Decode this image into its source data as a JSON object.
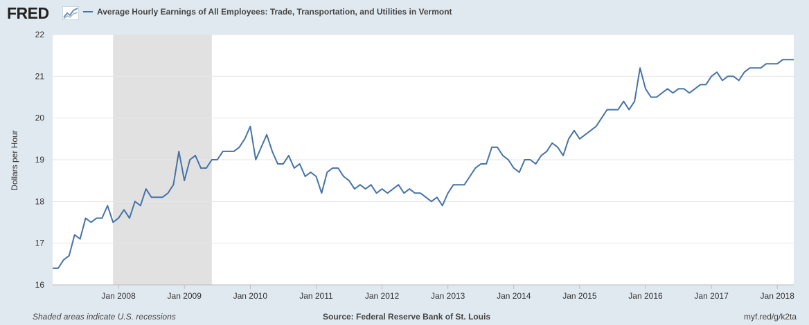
{
  "brand": {
    "logo_text": "FRED"
  },
  "icons": {
    "logo": "fred-trend-line-icon"
  },
  "colors": {
    "line": "#4572a7",
    "recession": "#e1e1e1",
    "grid": "#e6e6e6",
    "background": "#e1e9f0"
  },
  "footer": {
    "note": "Shaded areas indicate U.S. recessions",
    "source": "Source: Federal Reserve Bank of St. Louis",
    "url": "myf.red/g/k2ta"
  },
  "chart_data": {
    "type": "line",
    "title": "Average Hourly Earnings of All Employees: Trade, Transportation, and Utilities in Vermont",
    "ylabel": "Dollars per Hour",
    "xlabel": "",
    "ylim": [
      16,
      22
    ],
    "yticks": [
      16,
      17,
      18,
      19,
      20,
      21,
      22
    ],
    "xticks": [
      "Jan 2008",
      "Jan 2009",
      "Jan 2010",
      "Jan 2011",
      "Jan 2012",
      "Jan 2013",
      "Jan 2014",
      "Jan 2015",
      "Jan 2016",
      "Jan 2017",
      "Jan 2018"
    ],
    "x_range": [
      "2007-01",
      "2018-04"
    ],
    "grid": true,
    "recessions": [
      {
        "start": "2007-12",
        "end": "2009-06"
      }
    ],
    "series": [
      {
        "name": "Average Hourly Earnings of All Employees: Trade, Transportation, and Utilities in Vermont",
        "start": "2007-01",
        "frequency": "monthly",
        "values": [
          16.4,
          16.4,
          16.6,
          16.7,
          17.2,
          17.1,
          17.6,
          17.5,
          17.6,
          17.6,
          17.9,
          17.5,
          17.6,
          17.8,
          17.6,
          18.0,
          17.9,
          18.3,
          18.1,
          18.1,
          18.1,
          18.2,
          18.4,
          19.2,
          18.5,
          19.0,
          19.1,
          18.8,
          18.8,
          19.0,
          19.0,
          19.2,
          19.2,
          19.2,
          19.3,
          19.5,
          19.8,
          19.0,
          19.3,
          19.6,
          19.2,
          18.9,
          18.9,
          19.1,
          18.8,
          18.9,
          18.6,
          18.7,
          18.6,
          18.2,
          18.7,
          18.8,
          18.8,
          18.6,
          18.5,
          18.3,
          18.4,
          18.3,
          18.4,
          18.2,
          18.3,
          18.2,
          18.3,
          18.4,
          18.2,
          18.3,
          18.2,
          18.2,
          18.1,
          18.0,
          18.1,
          17.9,
          18.2,
          18.4,
          18.4,
          18.4,
          18.6,
          18.8,
          18.9,
          18.9,
          19.3,
          19.3,
          19.1,
          19.0,
          18.8,
          18.7,
          19.0,
          19.0,
          18.9,
          19.1,
          19.2,
          19.4,
          19.3,
          19.1,
          19.5,
          19.7,
          19.5,
          19.6,
          19.7,
          19.8,
          20.0,
          20.2,
          20.2,
          20.2,
          20.4,
          20.2,
          20.4,
          21.2,
          20.7,
          20.5,
          20.5,
          20.6,
          20.7,
          20.6,
          20.7,
          20.7,
          20.6,
          20.7,
          20.8,
          20.8,
          21.0,
          21.1,
          20.9,
          21.0,
          21.0,
          20.9,
          21.1,
          21.2,
          21.2,
          21.2,
          21.3,
          21.3,
          21.3,
          21.4,
          21.4,
          21.4
        ]
      }
    ]
  }
}
